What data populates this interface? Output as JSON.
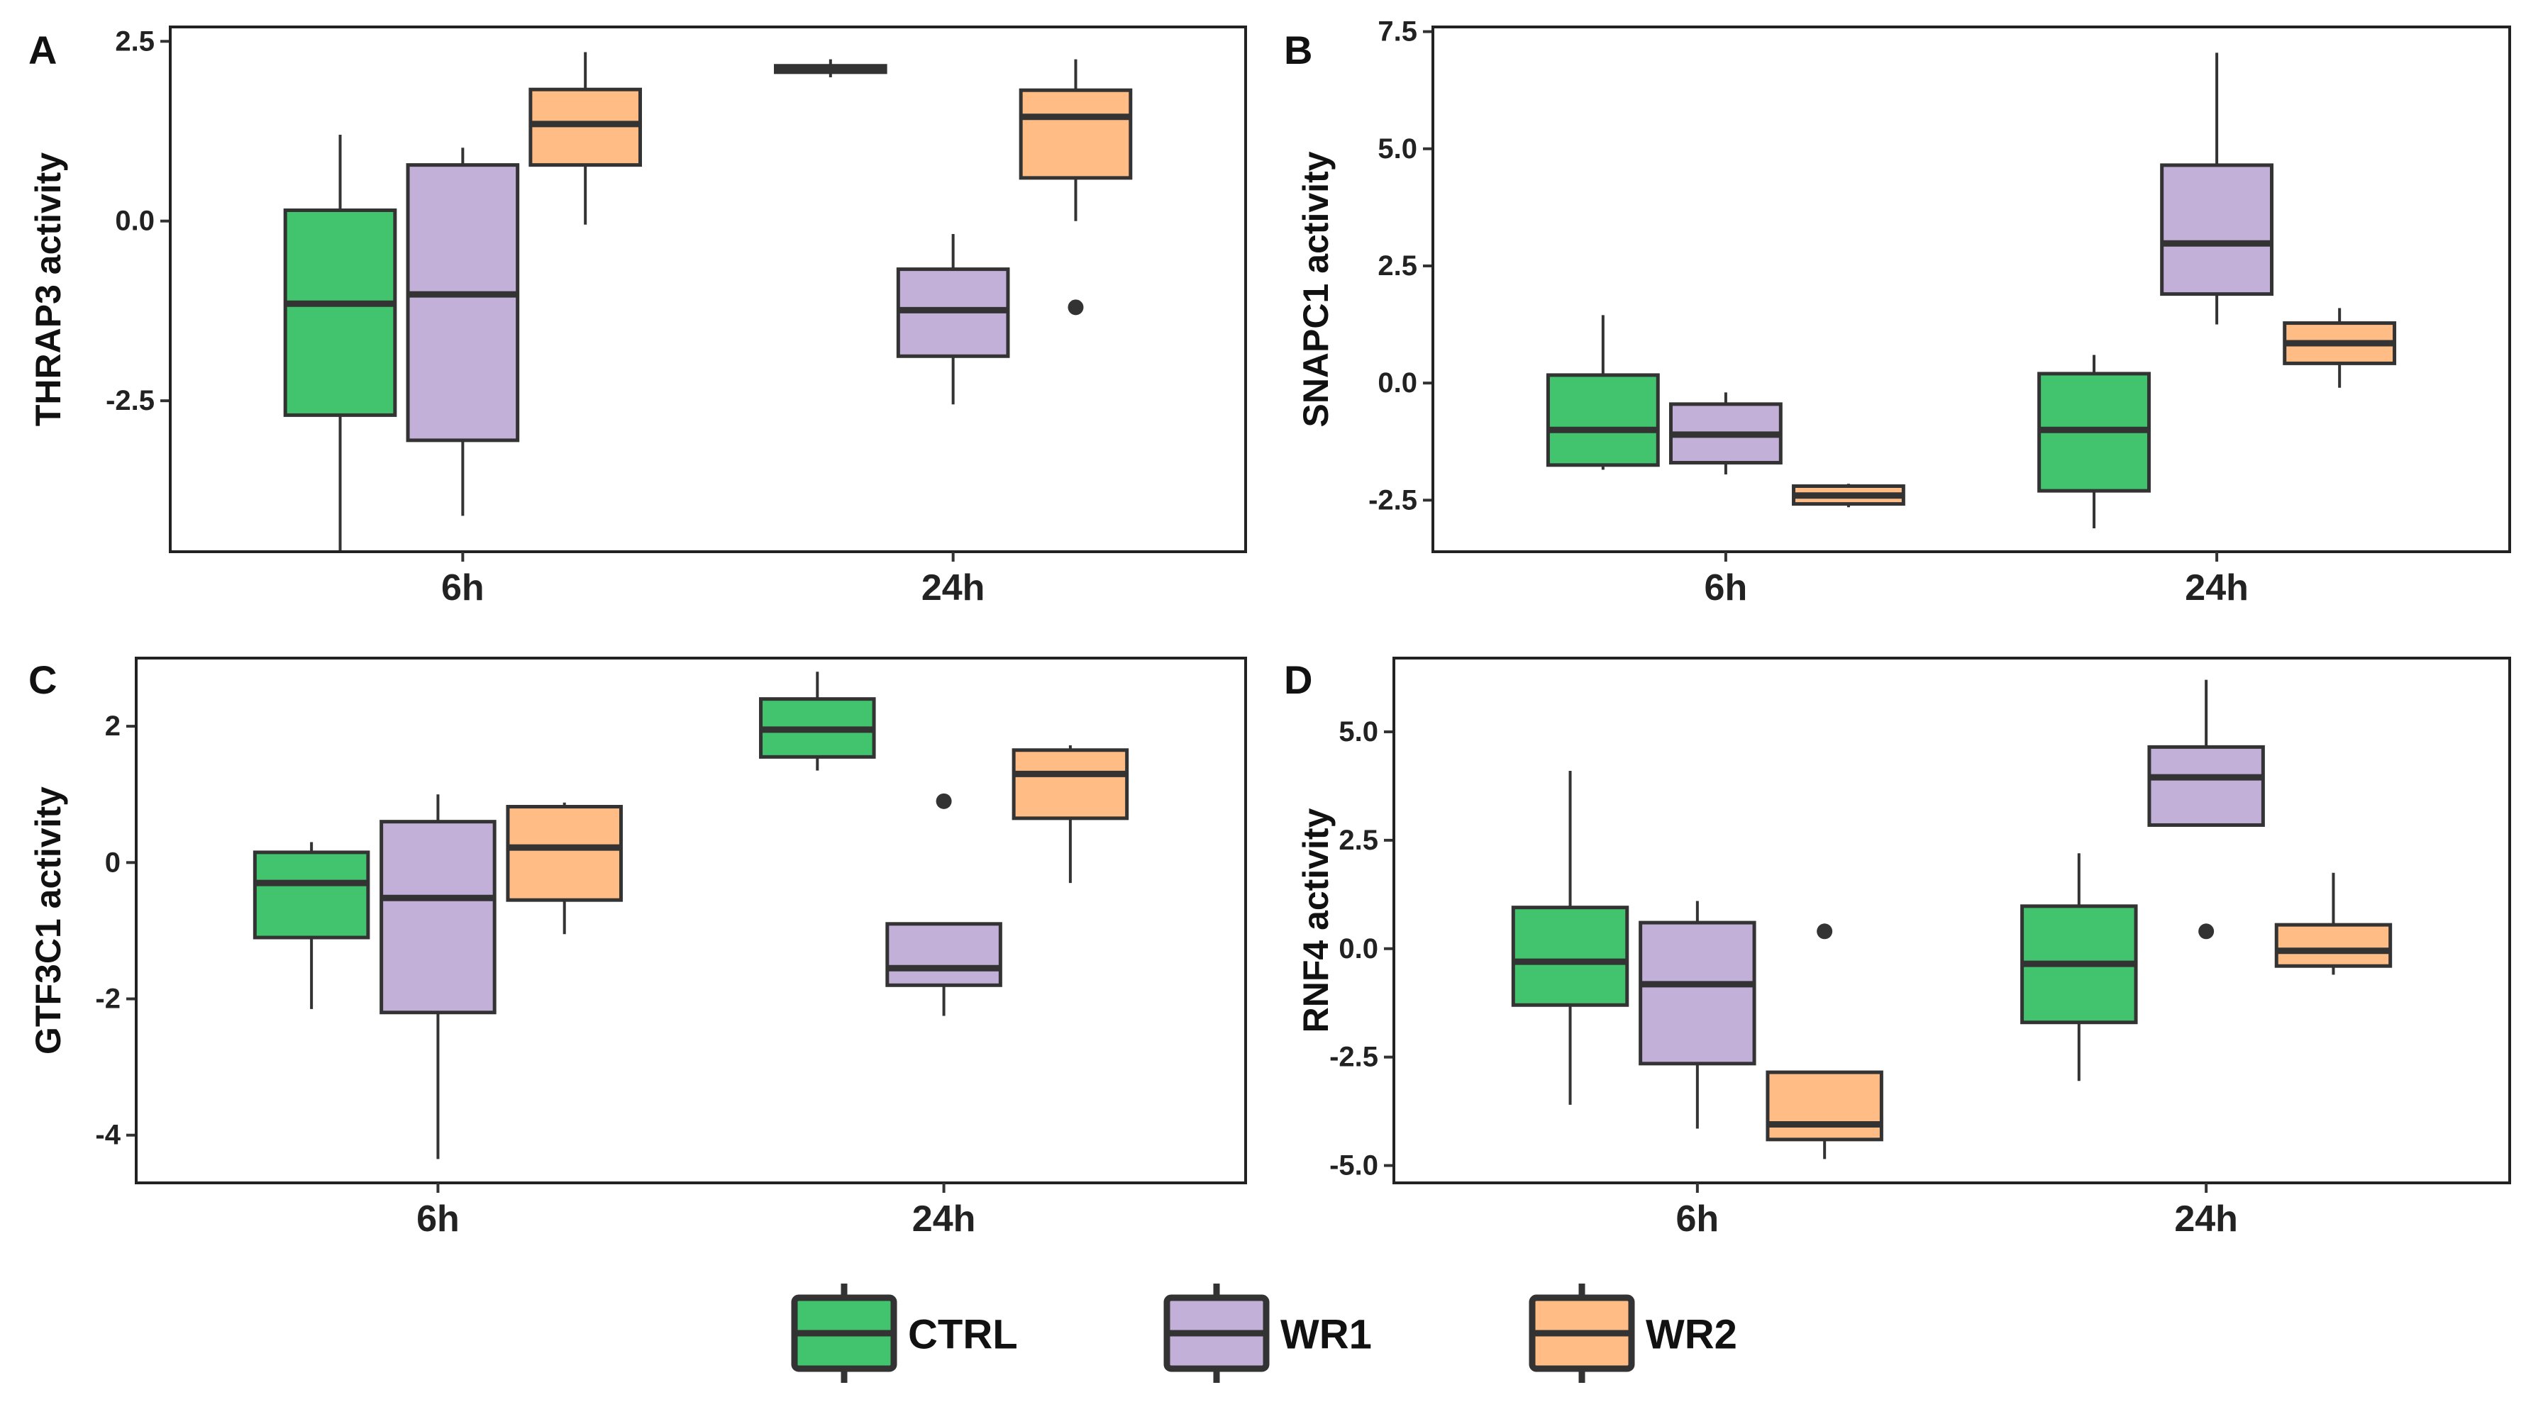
{
  "chart_data": [
    {
      "type": "box",
      "panel": "A",
      "ylabel": "THRAP3 activity",
      "categories": [
        "6h",
        "24h"
      ],
      "ylim": [
        -4.6,
        2.7
      ],
      "yticks": [
        2.5,
        0.0,
        -2.5
      ],
      "ytick_labels": [
        "2.5",
        "0.0",
        "-2.5"
      ],
      "series": [
        {
          "name": "CTRL",
          "boxes": [
            {
              "whislo": -4.6,
              "q1": -2.7,
              "med": -1.15,
              "q3": 0.15,
              "whishi": 1.2,
              "outliers": []
            },
            {
              "whislo": 2.0,
              "q1": 2.07,
              "med": 2.12,
              "q3": 2.16,
              "whishi": 2.25,
              "outliers": []
            }
          ]
        },
        {
          "name": "WR1",
          "boxes": [
            {
              "whislo": -4.1,
              "q1": -3.05,
              "med": -1.02,
              "q3": 0.78,
              "whishi": 1.02,
              "outliers": []
            },
            {
              "whislo": -2.55,
              "q1": -1.88,
              "med": -1.24,
              "q3": -0.67,
              "whishi": -0.18,
              "outliers": []
            }
          ]
        },
        {
          "name": "WR2",
          "boxes": [
            {
              "whislo": -0.05,
              "q1": 0.78,
              "med": 1.35,
              "q3": 1.83,
              "whishi": 2.35,
              "outliers": []
            },
            {
              "whislo": 0.0,
              "q1": 0.6,
              "med": 1.45,
              "q3": 1.82,
              "whishi": 2.25,
              "outliers": [
                -1.2
              ]
            }
          ]
        }
      ]
    },
    {
      "type": "box",
      "panel": "B",
      "ylabel": "SNAPC1 activity",
      "categories": [
        "6h",
        "24h"
      ],
      "ylim": [
        -3.6,
        7.6
      ],
      "yticks": [
        7.5,
        5.0,
        2.5,
        0.0,
        -2.5
      ],
      "ytick_labels": [
        "7.5",
        "5.0",
        "2.5",
        "0.0",
        "-2.5"
      ],
      "series": [
        {
          "name": "CTRL",
          "boxes": [
            {
              "whislo": -1.85,
              "q1": -1.75,
              "med": -1.0,
              "q3": 0.17,
              "whishi": 1.45,
              "outliers": []
            },
            {
              "whislo": -3.1,
              "q1": -2.3,
              "med": -1.0,
              "q3": 0.2,
              "whishi": 0.6,
              "outliers": []
            }
          ]
        },
        {
          "name": "WR1",
          "boxes": [
            {
              "whislo": -1.95,
              "q1": -1.7,
              "med": -1.1,
              "q3": -0.45,
              "whishi": -0.2,
              "outliers": []
            },
            {
              "whislo": 1.25,
              "q1": 1.9,
              "med": 2.98,
              "q3": 4.65,
              "whishi": 7.05,
              "outliers": []
            }
          ]
        },
        {
          "name": "WR2",
          "boxes": [
            {
              "whislo": -2.65,
              "q1": -2.58,
              "med": -2.4,
              "q3": -2.2,
              "whishi": -2.15,
              "outliers": []
            },
            {
              "whislo": -0.1,
              "q1": 0.42,
              "med": 0.85,
              "q3": 1.28,
              "whishi": 1.6,
              "outliers": []
            }
          ]
        }
      ]
    },
    {
      "type": "box",
      "panel": "C",
      "ylabel": "GTF3C1 activity",
      "categories": [
        "6h",
        "24h"
      ],
      "ylim": [
        -4.7,
        3.0
      ],
      "yticks": [
        2,
        0,
        -2,
        -4
      ],
      "ytick_labels": [
        "2",
        "0",
        "-2",
        "-4"
      ],
      "series": [
        {
          "name": "CTRL",
          "boxes": [
            {
              "whislo": -2.15,
              "q1": -1.1,
              "med": -0.3,
              "q3": 0.15,
              "whishi": 0.3,
              "outliers": []
            },
            {
              "whislo": 1.35,
              "q1": 1.55,
              "med": 1.95,
              "q3": 2.4,
              "whishi": 2.8,
              "outliers": []
            }
          ]
        },
        {
          "name": "WR1",
          "boxes": [
            {
              "whislo": -4.35,
              "q1": -2.2,
              "med": -0.52,
              "q3": 0.6,
              "whishi": 1.0,
              "outliers": []
            },
            {
              "whislo": -2.25,
              "q1": -1.8,
              "med": -1.55,
              "q3": -0.9,
              "whishi": -0.9,
              "outliers": [
                0.9
              ]
            }
          ]
        },
        {
          "name": "WR2",
          "boxes": [
            {
              "whislo": -1.05,
              "q1": -0.55,
              "med": 0.22,
              "q3": 0.82,
              "whishi": 0.88,
              "outliers": []
            },
            {
              "whislo": -0.3,
              "q1": 0.65,
              "med": 1.3,
              "q3": 1.65,
              "whishi": 1.72,
              "outliers": []
            }
          ]
        }
      ]
    },
    {
      "type": "box",
      "panel": "D",
      "ylabel": "RNF4 activity",
      "categories": [
        "6h",
        "24h"
      ],
      "ylim": [
        -5.4,
        6.7
      ],
      "yticks": [
        5.0,
        2.5,
        0.0,
        -2.5,
        -5.0
      ],
      "ytick_labels": [
        "5.0",
        "2.5",
        "0.0",
        "-2.5",
        "-5.0"
      ],
      "series": [
        {
          "name": "CTRL",
          "boxes": [
            {
              "whislo": -3.6,
              "q1": -1.3,
              "med": -0.3,
              "q3": 0.95,
              "whishi": 4.1,
              "outliers": []
            },
            {
              "whislo": -3.05,
              "q1": -1.7,
              "med": -0.35,
              "q3": 0.98,
              "whishi": 2.2,
              "outliers": []
            }
          ]
        },
        {
          "name": "WR1",
          "boxes": [
            {
              "whislo": -4.15,
              "q1": -2.65,
              "med": -0.82,
              "q3": 0.6,
              "whishi": 1.1,
              "outliers": []
            },
            {
              "whislo": 2.85,
              "q1": 2.85,
              "med": 3.95,
              "q3": 4.65,
              "whishi": 6.2,
              "outliers": [
                0.4
              ]
            }
          ]
        },
        {
          "name": "WR2",
          "boxes": [
            {
              "whislo": -4.85,
              "q1": -4.4,
              "med": -4.05,
              "q3": -2.85,
              "whishi": -2.85,
              "outliers": [
                0.4
              ]
            },
            {
              "whislo": -0.6,
              "q1": -0.4,
              "med": -0.05,
              "q3": 0.55,
              "whishi": 1.75,
              "outliers": []
            }
          ]
        }
      ]
    }
  ],
  "legend": {
    "position": "bottom",
    "items": [
      {
        "name": "CTRL",
        "color": "#41c46d"
      },
      {
        "name": "WR1",
        "color": "#c2b0d8"
      },
      {
        "name": "WR2",
        "color": "#ffbc85"
      }
    ]
  },
  "colors": {
    "CTRL": "#41c46d",
    "WR1": "#c2b0d8",
    "WR2": "#ffbc85",
    "line": "#333333"
  }
}
